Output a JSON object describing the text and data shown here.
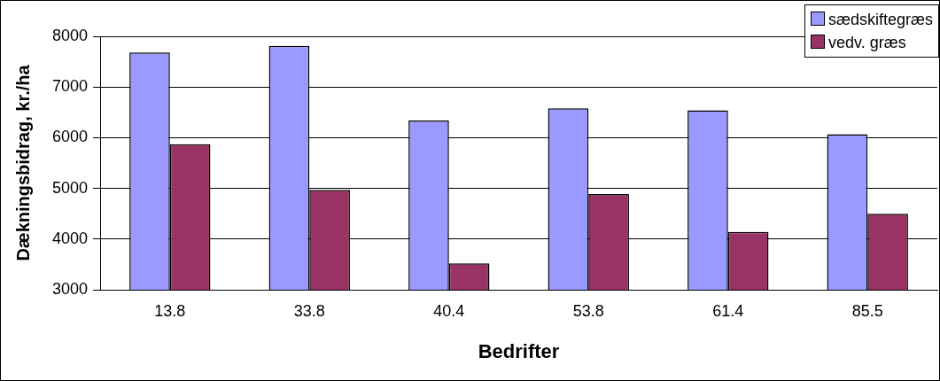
{
  "chart_data": {
    "type": "bar",
    "xlabel": "Bedrifter",
    "ylabel": "Dækningsbidrag, kr./ha",
    "categories": [
      "13.8",
      "33.8",
      "40.4",
      "53.8",
      "61.4",
      "85.5"
    ],
    "series": [
      {
        "name": "sædskiftegræs",
        "color": "#9999ff",
        "values": [
          7680,
          7810,
          6340,
          6580,
          6540,
          6070
        ]
      },
      {
        "name": "vedv. græs",
        "color": "#993366",
        "values": [
          5870,
          4970,
          3520,
          4890,
          4140,
          4500
        ]
      }
    ],
    "ylim": [
      3000,
      8000
    ],
    "yticks": [
      3000,
      4000,
      5000,
      6000,
      7000,
      8000
    ],
    "grid": "y",
    "legend": "top right"
  }
}
